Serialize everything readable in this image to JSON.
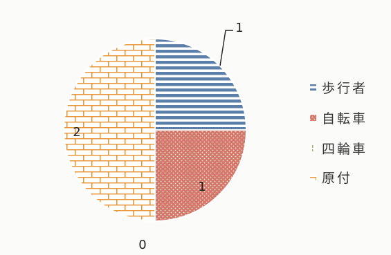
{
  "chart_data": {
    "type": "pie",
    "categories": [
      "歩行者",
      "自転車",
      "四輪車",
      "原付"
    ],
    "values": [
      1,
      1,
      0,
      2
    ],
    "data_labels": [
      "1",
      "1",
      "0",
      "2"
    ],
    "legend_position": "right",
    "colors": [
      "#5b7fa8",
      "#d4786a",
      "#9bbb59",
      "#e8973a"
    ],
    "patterns": [
      "horizontal-lines",
      "dots",
      "vertical-dashes",
      "brick"
    ]
  }
}
